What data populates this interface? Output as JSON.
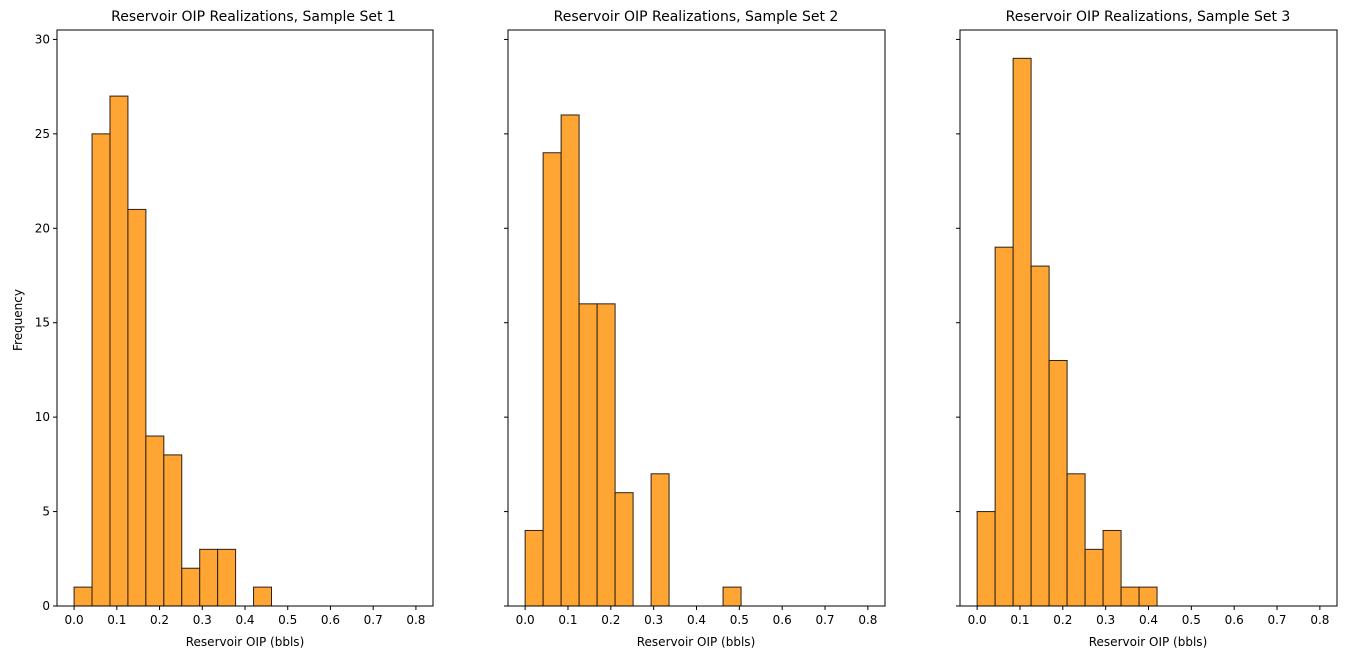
{
  "chart_data": [
    {
      "type": "bar",
      "title": "Reservoir OIP Realizations, Sample Set 1",
      "xlabel": "Reservoir OIP (bbls)",
      "ylabel": "Frequency",
      "xlim": [
        -0.04,
        0.84
      ],
      "ylim": [
        0,
        30.5
      ],
      "xticks": [
        0.0,
        0.1,
        0.2,
        0.3,
        0.4,
        0.5,
        0.6,
        0.7,
        0.8
      ],
      "yticks": [
        0,
        5,
        10,
        15,
        20,
        25,
        30
      ],
      "bin_edges": [
        0.0,
        0.042,
        0.084,
        0.126,
        0.168,
        0.21,
        0.252,
        0.294,
        0.336,
        0.378,
        0.42,
        0.462
      ],
      "values": [
        1,
        25,
        27,
        21,
        9,
        8,
        2,
        3,
        3,
        0,
        1
      ],
      "color": "#ffa533"
    },
    {
      "type": "bar",
      "title": "Reservoir OIP Realizations, Sample Set 2",
      "xlabel": "Reservoir OIP (bbls)",
      "ylabel": "",
      "xlim": [
        -0.04,
        0.84
      ],
      "ylim": [
        0,
        30.5
      ],
      "xticks": [
        0.0,
        0.1,
        0.2,
        0.3,
        0.4,
        0.5,
        0.6,
        0.7,
        0.8
      ],
      "yticks": [
        0,
        5,
        10,
        15,
        20,
        25,
        30
      ],
      "bin_edges": [
        0.0,
        0.042,
        0.084,
        0.126,
        0.168,
        0.21,
        0.252,
        0.294,
        0.336,
        0.378,
        0.42,
        0.462,
        0.504
      ],
      "values": [
        4,
        24,
        26,
        16,
        16,
        6,
        0,
        7,
        0,
        0,
        0,
        1
      ],
      "color": "#ffa533"
    },
    {
      "type": "bar",
      "title": "Reservoir OIP Realizations, Sample Set 3",
      "xlabel": "Reservoir OIP (bbls)",
      "ylabel": "",
      "xlim": [
        -0.04,
        0.84
      ],
      "ylim": [
        0,
        30.5
      ],
      "xticks": [
        0.0,
        0.1,
        0.2,
        0.3,
        0.4,
        0.5,
        0.6,
        0.7,
        0.8
      ],
      "yticks": [
        0,
        5,
        10,
        15,
        20,
        25,
        30
      ],
      "bin_edges": [
        0.0,
        0.042,
        0.084,
        0.126,
        0.168,
        0.21,
        0.252,
        0.294,
        0.336,
        0.378,
        0.42
      ],
      "values": [
        5,
        19,
        29,
        18,
        13,
        7,
        3,
        4,
        1,
        1
      ],
      "color": "#ffa533"
    }
  ]
}
